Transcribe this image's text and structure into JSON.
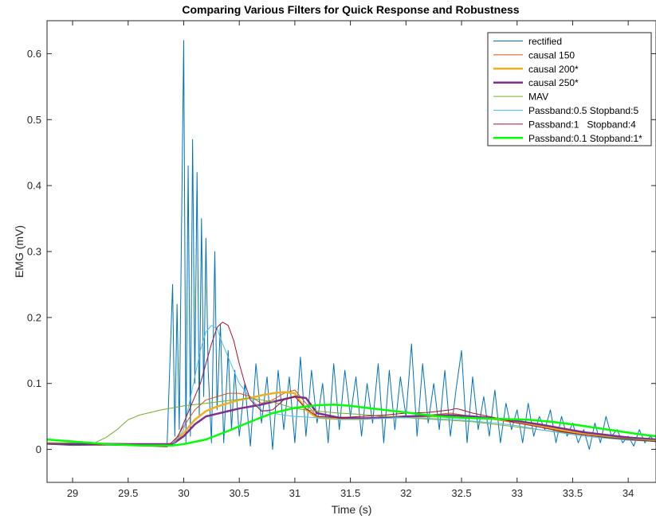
{
  "chart_data": {
    "type": "line",
    "title": "Comparing Various Filters for Quick Response and Robustness",
    "xlabel": "Time (s)",
    "ylabel": "EMG (mV)",
    "xlim": [
      28.77,
      34.25
    ],
    "ylim": [
      -0.05,
      0.65
    ],
    "xticks": [
      29,
      29.5,
      30,
      30.5,
      31,
      31.5,
      32,
      32.5,
      33,
      33.5,
      34
    ],
    "xtick_labels": [
      "29",
      "29.5",
      "30",
      "30.5",
      "31",
      "31.5",
      "32",
      "32.5",
      "33",
      "33.5",
      "34"
    ],
    "yticks": [
      0,
      0.1,
      0.2,
      0.3,
      0.4,
      0.5,
      0.6
    ],
    "ytick_labels": [
      "0",
      "0.1",
      "0.2",
      "0.3",
      "0.4",
      "0.5",
      "0.6"
    ],
    "grid": false,
    "legend_position": "top-right",
    "series": [
      {
        "name": "rectified",
        "color": "#0072BD",
        "width": 1,
        "x": [
          28.77,
          29.0,
          29.5,
          29.85,
          29.9,
          29.92,
          29.94,
          29.96,
          29.98,
          30.0,
          30.02,
          30.04,
          30.06,
          30.08,
          30.1,
          30.12,
          30.14,
          30.16,
          30.18,
          30.2,
          30.22,
          30.25,
          30.28,
          30.3,
          30.33,
          30.36,
          30.4,
          30.43,
          30.46,
          30.5,
          30.55,
          30.6,
          30.65,
          30.7,
          30.75,
          30.8,
          30.85,
          30.9,
          30.95,
          31.0,
          31.05,
          31.1,
          31.15,
          31.2,
          31.25,
          31.3,
          31.35,
          31.4,
          31.45,
          31.5,
          31.55,
          31.6,
          31.65,
          31.7,
          31.75,
          31.8,
          31.85,
          31.9,
          31.95,
          32.0,
          32.05,
          32.1,
          32.15,
          32.2,
          32.25,
          32.3,
          32.35,
          32.4,
          32.45,
          32.5,
          32.55,
          32.6,
          32.65,
          32.7,
          32.75,
          32.8,
          32.85,
          32.9,
          32.95,
          33.0,
          33.05,
          33.1,
          33.15,
          33.2,
          33.25,
          33.3,
          33.35,
          33.4,
          33.45,
          33.5,
          33.55,
          33.6,
          33.65,
          33.7,
          33.75,
          33.8,
          33.85,
          33.9,
          33.95,
          34.0,
          34.05,
          34.1,
          34.15,
          34.2,
          34.25
        ],
        "y": [
          0.008,
          0.006,
          0.007,
          0.005,
          0.25,
          0.02,
          0.22,
          0.03,
          0.33,
          0.62,
          0.01,
          0.43,
          0.02,
          0.47,
          0.1,
          0.42,
          0.05,
          0.35,
          0.08,
          0.32,
          0.12,
          0.01,
          0.3,
          0.06,
          0.19,
          0.01,
          0.15,
          0.03,
          0.12,
          0.02,
          0.1,
          0.005,
          0.13,
          0.04,
          0.11,
          0.0,
          0.12,
          0.03,
          0.11,
          0.01,
          0.14,
          0.02,
          0.12,
          0.04,
          0.1,
          0.01,
          0.13,
          0.03,
          0.12,
          0.05,
          0.11,
          0.02,
          0.1,
          0.04,
          0.13,
          0.01,
          0.12,
          0.03,
          0.11,
          0.05,
          0.16,
          0.02,
          0.13,
          0.04,
          0.1,
          0.03,
          0.12,
          0.02,
          0.09,
          0.15,
          0.01,
          0.11,
          0.03,
          0.08,
          0.02,
          0.09,
          0.01,
          0.07,
          0.03,
          0.06,
          0.01,
          0.07,
          0.02,
          0.05,
          0.03,
          0.06,
          0.01,
          0.05,
          0.02,
          0.04,
          0.01,
          0.03,
          0.0,
          0.04,
          0.01,
          0.05,
          0.02,
          0.03,
          0.01,
          0.02,
          0.005,
          0.03,
          0.01,
          0.02,
          0.01
        ]
      },
      {
        "name": "causal 150",
        "color": "#D95319",
        "width": 1,
        "x": [
          28.77,
          29.5,
          29.9,
          30.0,
          30.1,
          30.2,
          30.3,
          30.4,
          30.5,
          30.6,
          30.7,
          30.8,
          30.9,
          31.0,
          31.1,
          31.2,
          31.4,
          31.6,
          31.8,
          32.0,
          32.2,
          32.4,
          32.6,
          32.8,
          33.0,
          33.2,
          33.4,
          33.6,
          33.8,
          34.0,
          34.25
        ],
        "y": [
          0.01,
          0.008,
          0.008,
          0.035,
          0.06,
          0.075,
          0.08,
          0.085,
          0.085,
          0.08,
          0.07,
          0.075,
          0.085,
          0.09,
          0.07,
          0.05,
          0.048,
          0.046,
          0.05,
          0.05,
          0.052,
          0.055,
          0.05,
          0.045,
          0.04,
          0.035,
          0.028,
          0.022,
          0.02,
          0.015,
          0.012
        ]
      },
      {
        "name": "causal 200*",
        "color": "#EDB120",
        "width": 2.5,
        "x": [
          28.77,
          29.5,
          29.9,
          30.0,
          30.1,
          30.2,
          30.3,
          30.4,
          30.5,
          30.6,
          30.7,
          30.8,
          30.9,
          31.0,
          31.1,
          31.2,
          31.4,
          31.6,
          31.8,
          32.0,
          32.2,
          32.4,
          32.6,
          32.8,
          33.0,
          33.2,
          33.4,
          33.6,
          33.8,
          34.0,
          34.25
        ],
        "y": [
          0.009,
          0.008,
          0.008,
          0.025,
          0.045,
          0.058,
          0.065,
          0.07,
          0.075,
          0.078,
          0.082,
          0.085,
          0.087,
          0.085,
          0.06,
          0.048,
          0.046,
          0.046,
          0.048,
          0.049,
          0.05,
          0.05,
          0.049,
          0.046,
          0.042,
          0.036,
          0.03,
          0.024,
          0.02,
          0.017,
          0.014
        ]
      },
      {
        "name": "causal 250*",
        "color": "#7E2F8E",
        "width": 2.5,
        "x": [
          28.77,
          29.5,
          29.9,
          30.0,
          30.1,
          30.2,
          30.3,
          30.4,
          30.5,
          30.6,
          30.7,
          30.8,
          30.9,
          31.0,
          31.1,
          31.2,
          31.4,
          31.6,
          31.8,
          32.0,
          32.2,
          32.4,
          32.6,
          32.8,
          33.0,
          33.2,
          33.4,
          33.6,
          33.8,
          34.0,
          34.25
        ],
        "y": [
          0.009,
          0.008,
          0.008,
          0.02,
          0.038,
          0.05,
          0.054,
          0.058,
          0.062,
          0.065,
          0.068,
          0.072,
          0.076,
          0.08,
          0.078,
          0.055,
          0.048,
          0.047,
          0.048,
          0.05,
          0.051,
          0.052,
          0.05,
          0.047,
          0.043,
          0.038,
          0.032,
          0.026,
          0.022,
          0.018,
          0.015
        ]
      },
      {
        "name": "MAV",
        "color": "#77AC30",
        "width": 1,
        "x": [
          28.77,
          29.2,
          29.3,
          29.4,
          29.5,
          29.6,
          29.7,
          29.8,
          29.9,
          30.0,
          30.2,
          30.4,
          30.6,
          30.8,
          31.0,
          31.2,
          31.4,
          31.6,
          31.8,
          32.0,
          32.2,
          32.4,
          32.6,
          32.8,
          33.0,
          33.2,
          33.4,
          33.6,
          33.8,
          34.0,
          34.25
        ],
        "y": [
          0.01,
          0.01,
          0.018,
          0.03,
          0.045,
          0.052,
          0.056,
          0.06,
          0.063,
          0.066,
          0.07,
          0.074,
          0.078,
          0.072,
          0.062,
          0.058,
          0.055,
          0.053,
          0.05,
          0.048,
          0.046,
          0.044,
          0.042,
          0.038,
          0.034,
          0.03,
          0.026,
          0.022,
          0.019,
          0.016,
          0.014
        ]
      },
      {
        "name": "Passband:0.5 Stopband:5",
        "color": "#4DBEEE",
        "width": 1,
        "x": [
          28.77,
          29.5,
          29.8,
          29.9,
          30.0,
          30.05,
          30.1,
          30.15,
          30.2,
          30.25,
          30.3,
          30.35,
          30.4,
          30.45,
          30.5,
          30.6,
          30.7,
          30.8,
          30.9,
          31.0,
          31.2,
          31.4,
          31.6,
          31.8,
          32.0,
          32.2,
          32.4,
          32.6,
          32.8,
          33.0,
          33.2,
          33.4,
          33.6,
          33.8,
          34.0,
          34.25
        ],
        "y": [
          0.008,
          0.006,
          0.005,
          0.006,
          0.03,
          0.07,
          0.11,
          0.15,
          0.178,
          0.188,
          0.183,
          0.16,
          0.14,
          0.12,
          0.1,
          0.078,
          0.06,
          0.055,
          0.052,
          0.05,
          0.048,
          0.046,
          0.046,
          0.047,
          0.048,
          0.047,
          0.046,
          0.043,
          0.04,
          0.036,
          0.03,
          0.025,
          0.02,
          0.017,
          0.014,
          0.012
        ]
      },
      {
        "name": "Passband:1   Stopband:4",
        "color": "#A2142F",
        "width": 1,
        "x": [
          28.77,
          29.5,
          29.85,
          29.95,
          30.05,
          30.15,
          30.2,
          30.25,
          30.3,
          30.35,
          30.4,
          30.45,
          30.5,
          30.55,
          30.6,
          30.7,
          30.8,
          30.9,
          31.0,
          31.1,
          31.2,
          31.4,
          31.6,
          31.8,
          32.0,
          32.2,
          32.4,
          32.45,
          32.5,
          32.6,
          32.8,
          33.0,
          33.2,
          33.4,
          33.6,
          33.8,
          34.0,
          34.25
        ],
        "y": [
          0.008,
          0.006,
          0.004,
          0.02,
          0.06,
          0.1,
          0.13,
          0.16,
          0.185,
          0.193,
          0.188,
          0.165,
          0.13,
          0.1,
          0.075,
          0.058,
          0.06,
          0.075,
          0.08,
          0.062,
          0.05,
          0.048,
          0.05,
          0.052,
          0.055,
          0.056,
          0.06,
          0.062,
          0.06,
          0.055,
          0.048,
          0.04,
          0.034,
          0.027,
          0.022,
          0.018,
          0.015,
          0.012
        ]
      },
      {
        "name": "Passband:0.1 Stopband:1*",
        "color": "#00FF00",
        "width": 2.5,
        "x": [
          28.77,
          29.0,
          29.3,
          29.6,
          29.9,
          30.0,
          30.2,
          30.4,
          30.6,
          30.8,
          31.0,
          31.2,
          31.35,
          31.5,
          31.7,
          31.9,
          32.1,
          32.3,
          32.5,
          32.7,
          32.9,
          33.1,
          33.3,
          33.5,
          33.7,
          33.9,
          34.1,
          34.25
        ],
        "y": [
          0.015,
          0.012,
          0.008,
          0.006,
          0.006,
          0.008,
          0.015,
          0.028,
          0.042,
          0.055,
          0.063,
          0.067,
          0.068,
          0.066,
          0.062,
          0.058,
          0.054,
          0.05,
          0.048,
          0.047,
          0.046,
          0.045,
          0.042,
          0.038,
          0.033,
          0.028,
          0.023,
          0.02
        ]
      }
    ]
  }
}
